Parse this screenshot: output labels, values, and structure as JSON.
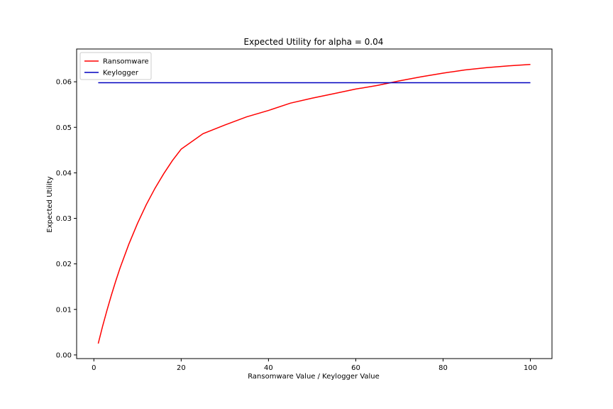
{
  "chart_data": {
    "type": "line",
    "title": "Expected Utility for alpha = 0.04",
    "xlabel": "Ransomware Value / Keylogger Value",
    "ylabel": "Expected Utility",
    "xlim": [
      -3.95,
      104.95
    ],
    "ylim": [
      -0.0008,
      0.0672
    ],
    "xticks": [
      0,
      20,
      40,
      60,
      80,
      100
    ],
    "xtick_labels": [
      "0",
      "20",
      "40",
      "60",
      "80",
      "100"
    ],
    "yticks": [
      0.0,
      0.01,
      0.02,
      0.03,
      0.04,
      0.05,
      0.06
    ],
    "ytick_labels": [
      "0.00",
      "0.01",
      "0.02",
      "0.03",
      "0.04",
      "0.05",
      "0.06"
    ],
    "grid": false,
    "legend": {
      "position": "top-left"
    },
    "series": [
      {
        "name": "Ransomware",
        "color": "#ff0000",
        "x": [
          1,
          2,
          3,
          4,
          5,
          6,
          8,
          10,
          12,
          14,
          16,
          18,
          20,
          25,
          30,
          35,
          40,
          45,
          50,
          55,
          60,
          65,
          70,
          75,
          80,
          85,
          90,
          95,
          100
        ],
        "y": [
          0.0025,
          0.0063,
          0.0098,
          0.0131,
          0.0162,
          0.0191,
          0.0243,
          0.0289,
          0.033,
          0.0366,
          0.0398,
          0.0427,
          0.0452,
          0.0486,
          0.0505,
          0.0523,
          0.0537,
          0.0553,
          0.0564,
          0.0574,
          0.0584,
          0.0592,
          0.0602,
          0.0611,
          0.0619,
          0.0626,
          0.0631,
          0.0635,
          0.0638
        ]
      },
      {
        "name": "Keylogger",
        "color": "#0000bf",
        "x": [
          1,
          100
        ],
        "y": [
          0.0598,
          0.0598
        ]
      }
    ]
  }
}
